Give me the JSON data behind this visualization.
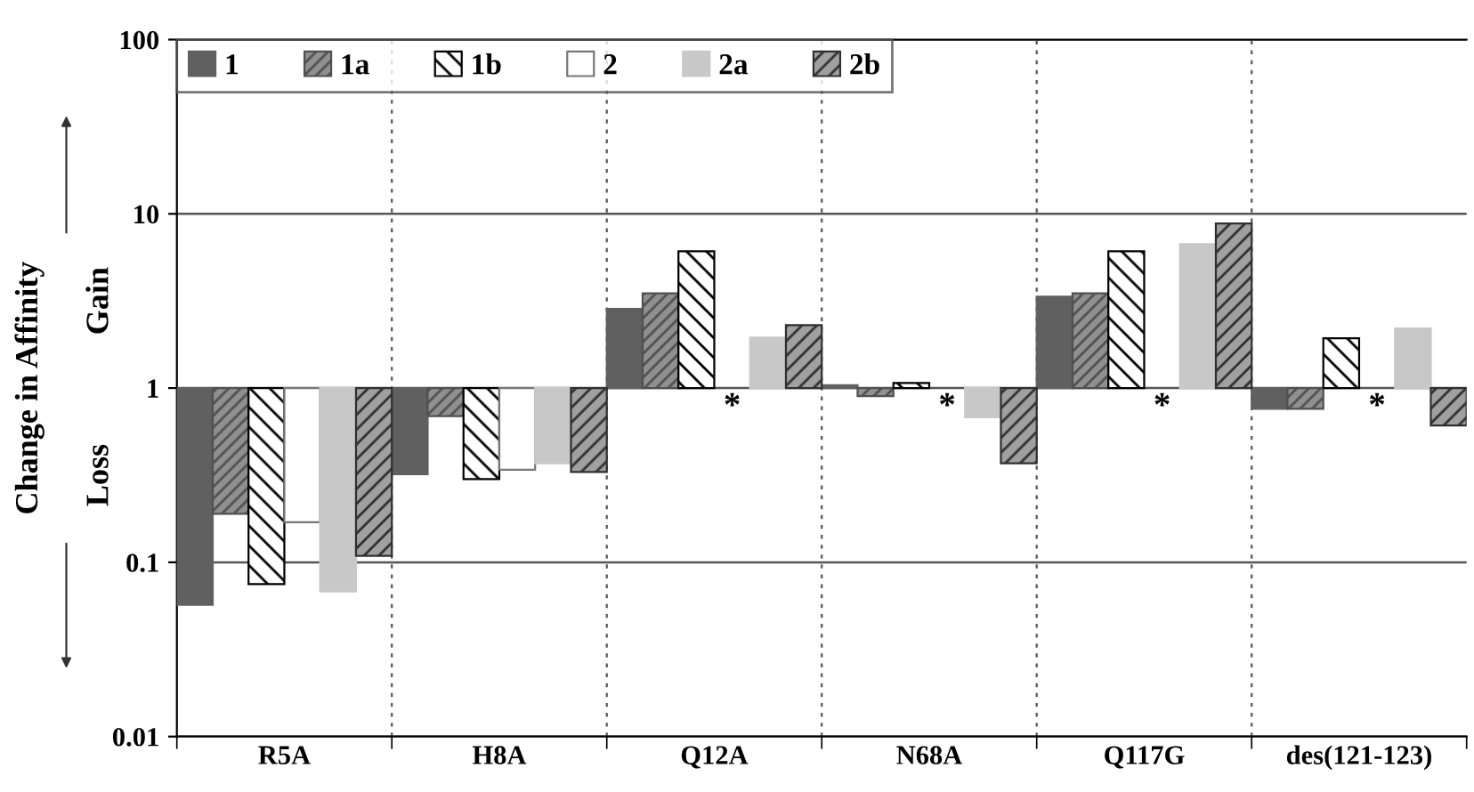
{
  "chart_data": {
    "type": "bar",
    "ylabel": "Change in Affinity",
    "categories": [
      "R5A",
      "H8A",
      "Q12A",
      "N68A",
      "Q117G",
      "des(121-123)"
    ],
    "series": [
      {
        "name": "1",
        "color": "#606060",
        "base": [
          1,
          1,
          1,
          1,
          1,
          1
        ],
        "values": [
          -0.943,
          -0.68,
          1.85,
          0.04,
          2.35,
          -0.24
        ]
      },
      {
        "name": "1a",
        "color": "#505050",
        "base": [
          1,
          1,
          1,
          1,
          1,
          1
        ],
        "values": [
          -0.81,
          -0.31,
          2.5,
          -0.1,
          2.5,
          -0.24
        ]
      },
      {
        "name": "1b",
        "color": "#000000",
        "base": [
          1,
          1,
          1,
          1,
          1,
          1
        ],
        "values": [
          -0.925,
          -0.7,
          5.1,
          0.07,
          5.1,
          0.93
        ]
      },
      {
        "name": "2",
        "color": "#ffffff",
        "base": [
          1,
          1,
          null,
          null,
          null,
          null
        ],
        "values": [
          -0.83,
          -0.66,
          null,
          null,
          null,
          null
        ]
      },
      {
        "name": "2a",
        "color": "#c8c8c8",
        "base": [
          1,
          1,
          1,
          1,
          1,
          1
        ],
        "values": [
          -0.932,
          -0.63,
          0.95,
          -0.32,
          5.7,
          1.2
        ]
      },
      {
        "name": "2b",
        "color": "#303030",
        "base": [
          1,
          1,
          1,
          1,
          1,
          1
        ],
        "values": [
          -0.891,
          -0.67,
          1.3,
          -0.63,
          7.8,
          -0.39
        ]
      }
    ],
    "annotations": [
      "Gain",
      "Loss",
      "*",
      "*",
      "*",
      "*"
    ],
    "log": true,
    "ylim": [
      0.01,
      100
    ],
    "yticks": [
      0.01,
      0.1,
      1,
      10,
      100
    ],
    "grid": true,
    "legend": "top left"
  }
}
